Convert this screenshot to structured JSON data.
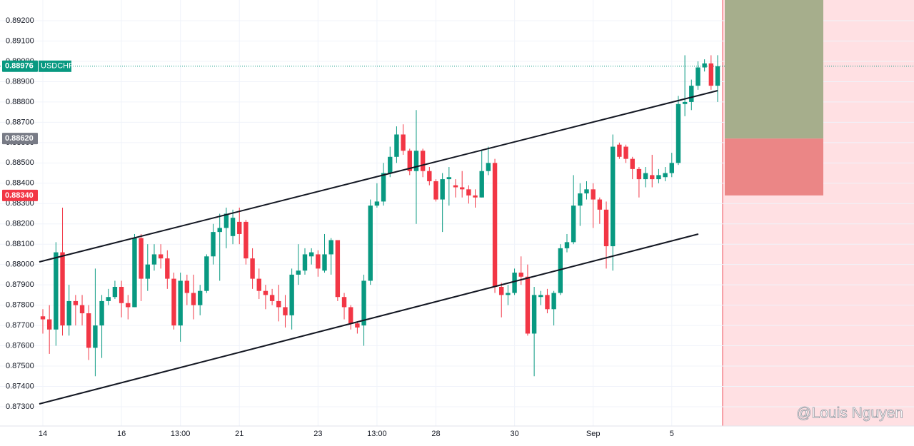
{
  "chart_data": {
    "type": "candlestick",
    "categories": [
      "14",
      null,
      null,
      null,
      null,
      null,
      null,
      null,
      null,
      null,
      null,
      null,
      "16",
      null,
      null,
      null,
      null,
      null,
      null,
      null,
      null,
      "13:00",
      null,
      null,
      null,
      null,
      null,
      null,
      null,
      null,
      "21",
      null,
      null,
      null,
      null,
      null,
      null,
      null,
      null,
      null,
      null,
      null,
      "23",
      null,
      null,
      null,
      null,
      null,
      null,
      null,
      null,
      "13:00",
      null,
      null,
      null,
      null,
      null,
      null,
      null,
      null,
      "28",
      null,
      null,
      null,
      null,
      null,
      null,
      null,
      null,
      null,
      null,
      null,
      "30",
      null,
      null,
      null,
      null,
      null,
      null,
      null,
      null,
      null,
      null,
      null,
      "Sep",
      null,
      null,
      null,
      null,
      null,
      null,
      null,
      null,
      null,
      null,
      null,
      "5",
      null,
      null,
      null,
      null,
      null,
      null,
      null
    ],
    "open": [
      0.87745,
      0.8773,
      0.8768,
      0.8806,
      0.877,
      0.8782,
      0.878,
      0.8776,
      0.8759,
      0.877,
      0.8782,
      0.8784,
      0.8789,
      0.8781,
      0.8779,
      0.8813,
      0.8793,
      0.88,
      0.8805,
      0.8803,
      0.8793,
      0.877,
      0.8792,
      0.8786,
      0.878,
      0.8787,
      0.8804,
      0.8816,
      0.8818,
      0.8814,
      0.8821,
      0.8821,
      0.8803,
      0.8793,
      0.8787,
      0.8785,
      0.8782,
      0.8779,
      0.8775,
      0.8795,
      0.8797,
      0.8804,
      0.8805,
      0.8797,
      0.8805,
      0.8812,
      0.8784,
      0.8779,
      0.8771,
      0.877,
      0.8792,
      0.8829,
      0.8831,
      0.8845,
      0.8853,
      0.8864,
      0.8856,
      0.8846,
      0.8856,
      0.8846,
      0.8841,
      0.8832,
      0.8842,
      0.8839,
      0.8838,
      0.8837,
      0.8834,
      0.8833,
      0.8846,
      0.885,
      0.8789,
      0.8785,
      0.8786,
      0.8796,
      0.8794,
      0.8766,
      0.8784,
      0.8785,
      0.8778,
      0.8786,
      0.8808,
      0.8811,
      0.8829,
      0.8835,
      0.8837,
      0.8832,
      0.8827,
      0.8809,
      0.8859,
      0.8858,
      0.8852,
      0.8847,
      0.8842,
      0.8844,
      0.8842,
      0.8843,
      0.8845,
      0.885,
      0.8879,
      0.888,
      0.8888,
      0.8897,
      0.8899,
      0.8888
    ],
    "high": [
      0.8778,
      0.878,
      0.8811,
      0.8828,
      0.879,
      0.8785,
      0.8785,
      0.878,
      0.8798,
      0.8785,
      0.8788,
      0.8792,
      0.8792,
      0.8785,
      0.8815,
      0.8815,
      0.881,
      0.881,
      0.881,
      0.8807,
      0.8796,
      0.8796,
      0.8795,
      0.8795,
      0.879,
      0.8805,
      0.882,
      0.8825,
      0.8828,
      0.8827,
      0.8828,
      0.8822,
      0.8808,
      0.8798,
      0.879,
      0.8788,
      0.879,
      0.8785,
      0.8798,
      0.881,
      0.8808,
      0.8808,
      0.8807,
      0.8815,
      0.8813,
      0.8812,
      0.8786,
      0.878,
      0.8772,
      0.8795,
      0.8832,
      0.884,
      0.885,
      0.8858,
      0.8868,
      0.8869,
      0.8857,
      0.8876,
      0.8857,
      0.8848,
      0.8842,
      0.8845,
      0.8848,
      0.8842,
      0.8846,
      0.8839,
      0.8837,
      0.8856,
      0.8858,
      0.8852,
      0.8791,
      0.879,
      0.8798,
      0.8804,
      0.88,
      0.8789,
      0.8787,
      0.8788,
      0.8787,
      0.881,
      0.8815,
      0.8844,
      0.884,
      0.8841,
      0.884,
      0.8833,
      0.8831,
      0.8864,
      0.886,
      0.8859,
      0.8853,
      0.8848,
      0.8848,
      0.8854,
      0.8847,
      0.8848,
      0.8855,
      0.8883,
      0.8903,
      0.8891,
      0.89,
      0.8901,
      0.8903,
      0.8903
    ],
    "low": [
      0.8766,
      0.8756,
      0.876,
      0.8765,
      0.8765,
      0.877,
      0.877,
      0.8753,
      0.8745,
      0.8754,
      0.878,
      0.8783,
      0.8774,
      0.8773,
      0.8779,
      0.8782,
      0.8787,
      0.8797,
      0.8798,
      0.8788,
      0.8768,
      0.8762,
      0.878,
      0.8773,
      0.8775,
      0.8786,
      0.88,
      0.8792,
      0.8808,
      0.881,
      0.881,
      0.88,
      0.8788,
      0.8783,
      0.8778,
      0.878,
      0.8772,
      0.8769,
      0.8768,
      0.879,
      0.8795,
      0.88,
      0.8794,
      0.8796,
      0.8795,
      0.8782,
      0.8773,
      0.8768,
      0.8766,
      0.876,
      0.879,
      0.8828,
      0.8829,
      0.8843,
      0.885,
      0.8854,
      0.8844,
      0.882,
      0.8843,
      0.8839,
      0.8831,
      0.8816,
      0.8829,
      0.8833,
      0.8833,
      0.883,
      0.8828,
      0.8833,
      0.8844,
      0.8786,
      0.8774,
      0.878,
      0.8785,
      0.879,
      0.8765,
      0.8745,
      0.878,
      0.8776,
      0.877,
      0.8785,
      0.8806,
      0.881,
      0.8819,
      0.8832,
      0.8818,
      0.882,
      0.8798,
      0.8797,
      0.8852,
      0.885,
      0.8842,
      0.8833,
      0.8838,
      0.8838,
      0.884,
      0.8841,
      0.8843,
      0.8849,
      0.8873,
      0.8876,
      0.8886,
      0.8895,
      0.8886,
      0.888
    ],
    "close": [
      0.8773,
      0.8768,
      0.8806,
      0.877,
      0.8782,
      0.878,
      0.8776,
      0.8759,
      0.877,
      0.8782,
      0.8784,
      0.8789,
      0.8781,
      0.8779,
      0.8813,
      0.8793,
      0.88,
      0.8805,
      0.8803,
      0.8793,
      0.877,
      0.8792,
      0.8786,
      0.878,
      0.8787,
      0.8804,
      0.8816,
      0.8818,
      0.8825,
      0.8823,
      0.8815,
      0.8803,
      0.8793,
      0.8787,
      0.8785,
      0.8782,
      0.8779,
      0.8775,
      0.8795,
      0.8797,
      0.8805,
      0.8806,
      0.8798,
      0.8805,
      0.8812,
      0.8784,
      0.8779,
      0.8771,
      0.8769,
      0.8792,
      0.8829,
      0.8831,
      0.8845,
      0.8853,
      0.8864,
      0.8856,
      0.8846,
      0.8856,
      0.8846,
      0.8841,
      0.8832,
      0.8842,
      0.8843,
      0.8838,
      0.8837,
      0.8834,
      0.8833,
      0.8846,
      0.885,
      0.8789,
      0.8785,
      0.8786,
      0.8796,
      0.8794,
      0.8766,
      0.8785,
      0.8785,
      0.8778,
      0.8786,
      0.8808,
      0.8811,
      0.8829,
      0.8835,
      0.8837,
      0.8832,
      0.8827,
      0.8809,
      0.8858,
      0.8853,
      0.8852,
      0.8847,
      0.8842,
      0.8845,
      0.8842,
      0.8844,
      0.8845,
      0.885,
      0.8879,
      0.888,
      0.8888,
      0.8897,
      0.8899,
      0.8888,
      0.88976
    ],
    "up_color": "#089981",
    "down_color": "#f23645",
    "ylim": [
      0.87205,
      0.89302
    ],
    "yticks": [
      {
        "value": 0.892,
        "label": "0.89200"
      },
      {
        "value": 0.891,
        "label": "0.89100"
      },
      {
        "value": 0.89,
        "label": "0.89000"
      },
      {
        "value": 0.889,
        "label": "0.88900"
      },
      {
        "value": 0.888,
        "label": "0.88800"
      },
      {
        "value": 0.887,
        "label": "0.88700"
      },
      {
        "value": 0.886,
        "label": "0.88600"
      },
      {
        "value": 0.885,
        "label": "0.88500"
      },
      {
        "value": 0.884,
        "label": "0.88400"
      },
      {
        "value": 0.883,
        "label": "0.88300"
      },
      {
        "value": 0.882,
        "label": "0.88200"
      },
      {
        "value": 0.881,
        "label": "0.88100"
      },
      {
        "value": 0.88,
        "label": "0.88000"
      },
      {
        "value": 0.879,
        "label": "0.87900"
      },
      {
        "value": 0.878,
        "label": "0.87800"
      },
      {
        "value": 0.877,
        "label": "0.87700"
      },
      {
        "value": 0.876,
        "label": "0.87600"
      },
      {
        "value": 0.875,
        "label": "0.87500"
      },
      {
        "value": 0.874,
        "label": "0.87400"
      },
      {
        "value": 0.873,
        "label": "0.87300"
      }
    ],
    "grid": true,
    "price_labels": [
      {
        "value": 0.88976,
        "symbol": "USDCHF",
        "color": "#089981"
      },
      {
        "value": 0.8862,
        "label": "0.88620",
        "color": "#787b86"
      },
      {
        "value": 0.8834,
        "label": "0.88340",
        "color": "#f23645"
      }
    ],
    "watermark": "@Louis Nguyen"
  }
}
